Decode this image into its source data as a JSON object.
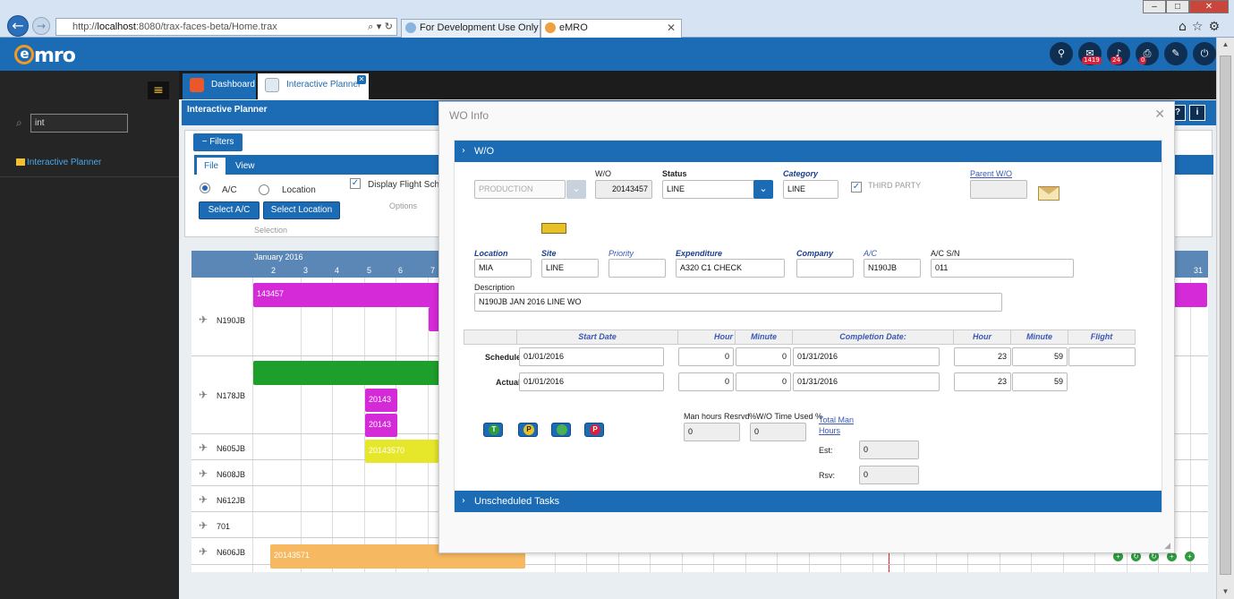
{
  "browser": {
    "url_prefix": "http://",
    "url_host": "localhost",
    "url_rest": ":8080/trax-faces-beta/Home.trax",
    "tabs": [
      {
        "label": "For Development Use Only - Tr..."
      },
      {
        "label": "eMRO"
      }
    ]
  },
  "app": {
    "logo": "mro",
    "header_badges": {
      "mail": "1419",
      "alerts": "24",
      "print": "0"
    }
  },
  "sidebar": {
    "search_value": "int",
    "items": [
      {
        "label": "Interactive Planner"
      }
    ]
  },
  "main": {
    "tabs": [
      {
        "label": "Dashboard"
      },
      {
        "label": "Interactive Planner"
      }
    ],
    "page_title": "Interactive Planner",
    "filters_label": "Filters",
    "filter_tabs": [
      {
        "label": "File"
      },
      {
        "label": "View"
      }
    ],
    "ac_radio": "A/C",
    "location_radio": "Location",
    "select_ac": "Select A/C",
    "select_location": "Select Location",
    "selection_caption": "Selection",
    "display_flight": "Display Flight Schedu",
    "options_caption": "Options"
  },
  "gantt": {
    "month": "January 2016",
    "days": [
      "2",
      "3",
      "4",
      "5",
      "6",
      "7",
      "31"
    ],
    "rows": [
      {
        "ac": "N190JB"
      },
      {
        "ac": "N178JB"
      },
      {
        "ac": "N605JB"
      },
      {
        "ac": "N608JB"
      },
      {
        "ac": "N612JB"
      },
      {
        "ac": "701"
      },
      {
        "ac": "N606JB"
      }
    ],
    "bars": {
      "magenta_top": "143457",
      "magenta_b1": "20143",
      "magenta_b2": "20143",
      "yellow": "20143570",
      "orange": "20143571"
    }
  },
  "modal": {
    "title": "WO Info",
    "section_wo": "W/O",
    "section_unscheduled": "Unscheduled Tasks",
    "type_value": "PRODUCTION",
    "labels": {
      "wo": "W/O",
      "status": "Status",
      "category": "Category",
      "third_party": "THIRD PARTY",
      "parent_wo": "Parent W/O",
      "location": "Location",
      "site": "Site",
      "priority": "Priority",
      "expenditure": "Expenditure",
      "company": "Company",
      "ac": "A/C",
      "ac_sn": "A/C S/N",
      "description": "Description",
      "start_date": "Start Date",
      "hour": "Hour",
      "minute": "Minute",
      "completion_date": "Completion Date:",
      "hour2": "Hour",
      "minute2": "Minute",
      "flight": "Flight",
      "schedule": "Schedule",
      "actual": "Actual",
      "man_hours_resrvd": "Man hours Resrvd",
      "wo_time_used": "%W/O Time Used %",
      "total_man_hours": "Total Man Hours",
      "est": "Est:",
      "rsv": "Rsv:"
    },
    "values": {
      "wo": "20143457",
      "status": "LINE",
      "category": "LINE",
      "parent_wo": "",
      "location": "MIA",
      "site": "LINE",
      "priority": "",
      "expenditure": "A320 C1 CHECK",
      "company": "",
      "ac": "N190JB",
      "ac_sn": "011",
      "description": "N190JB JAN 2016 LINE WO",
      "sched_start": "01/01/2016",
      "sched_hour": "0",
      "sched_minute": "0",
      "sched_completion": "01/31/2016",
      "sched_hour2": "23",
      "sched_minute2": "59",
      "sched_flight": "",
      "act_start": "01/01/2016",
      "act_hour": "0",
      "act_minute": "0",
      "act_completion": "01/31/2016",
      "act_hour2": "23",
      "act_minute2": "59",
      "man_hours_resrvd": "0",
      "wo_time_used": "0",
      "est": "0",
      "rsv": "0"
    },
    "action_icons": [
      {
        "letter": "T",
        "color": "#2e9b3e"
      },
      {
        "letter": "P",
        "color": "#e8c02a"
      },
      {
        "letter": "",
        "color": "#4caf50"
      },
      {
        "letter": "P",
        "color": "#d8203a"
      }
    ]
  }
}
